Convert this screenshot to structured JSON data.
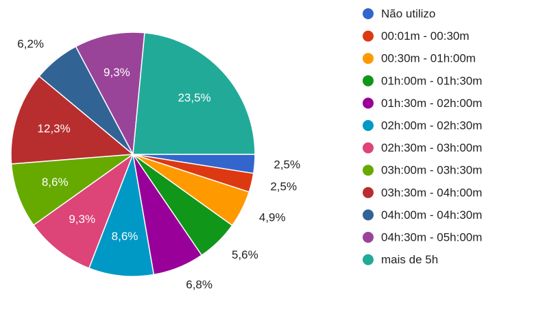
{
  "chart_data": {
    "type": "pie",
    "categories": [
      "Não utilizo",
      "00:01m - 00:30m",
      "00:30m - 01h:00m",
      "01h:00m - 01h:30m",
      "01h:30m - 02h:00m",
      "02h:00m - 02h:30m",
      "02h:30m - 03h:00m",
      "03h:00m - 03h:30m",
      "03h:30m - 04h:00m",
      "04h:00m - 04h:30m",
      "04h:30m - 05h:00m",
      "mais de 5h"
    ],
    "values": [
      2.5,
      2.5,
      4.9,
      5.6,
      6.8,
      8.6,
      9.3,
      8.6,
      12.3,
      6.2,
      9.3,
      23.5
    ],
    "value_labels": [
      "2,5%",
      "2,5%",
      "4,9%",
      "5,6%",
      "6,8%",
      "8,6%",
      "9,3%",
      "8,6%",
      "12,3%",
      "6,2%",
      "9,3%",
      "23,5%"
    ],
    "colors": [
      "#3366cc",
      "#dc3912",
      "#ff9900",
      "#109618",
      "#990099",
      "#0099c6",
      "#dd4477",
      "#66aa00",
      "#b82e2e",
      "#316395",
      "#994499",
      "#22aa99"
    ],
    "legend": "right"
  }
}
